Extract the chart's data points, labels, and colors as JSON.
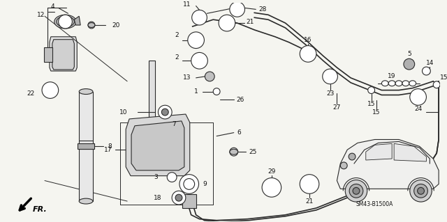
{
  "bg_color": "#f5f5f0",
  "line_color": "#2a2a2a",
  "text_color": "#111111",
  "fig_width": 6.4,
  "fig_height": 3.19,
  "dpi": 100,
  "diagram_code": "SM43-B1500A",
  "fr_label": "FR."
}
